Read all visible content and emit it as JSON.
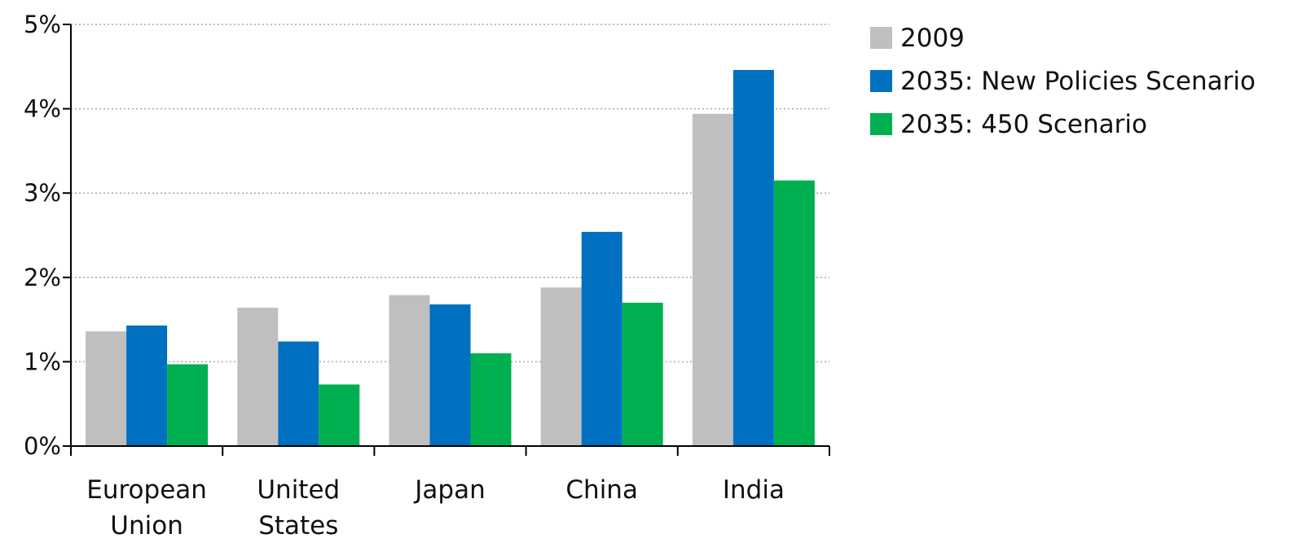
{
  "chart_data": {
    "type": "bar",
    "categories": [
      "European Union",
      "United States",
      "Japan",
      "China",
      "India"
    ],
    "category_lines": [
      [
        "European",
        "Union"
      ],
      [
        "United",
        "States"
      ],
      [
        "Japan"
      ],
      [
        "China"
      ],
      [
        "India"
      ]
    ],
    "series": [
      {
        "name": "2009",
        "color": "#bfbfbf",
        "values": [
          1.36,
          1.64,
          1.79,
          1.88,
          3.94
        ]
      },
      {
        "name": "2035: New Policies Scenario",
        "color": "#0070c0",
        "values": [
          1.43,
          1.24,
          1.68,
          2.54,
          4.46
        ]
      },
      {
        "name": "2035: 450 Scenario",
        "color": "#00b050",
        "values": [
          0.97,
          0.73,
          1.1,
          1.7,
          3.15
        ]
      }
    ],
    "ylim": [
      0,
      5
    ],
    "yticks": [
      0,
      1,
      2,
      3,
      4,
      5
    ],
    "ytick_labels": [
      "0%",
      "1%",
      "2%",
      "3%",
      "4%",
      "5%"
    ],
    "title": "",
    "xlabel": "",
    "ylabel": "",
    "grid": true,
    "legend": "top-right"
  }
}
